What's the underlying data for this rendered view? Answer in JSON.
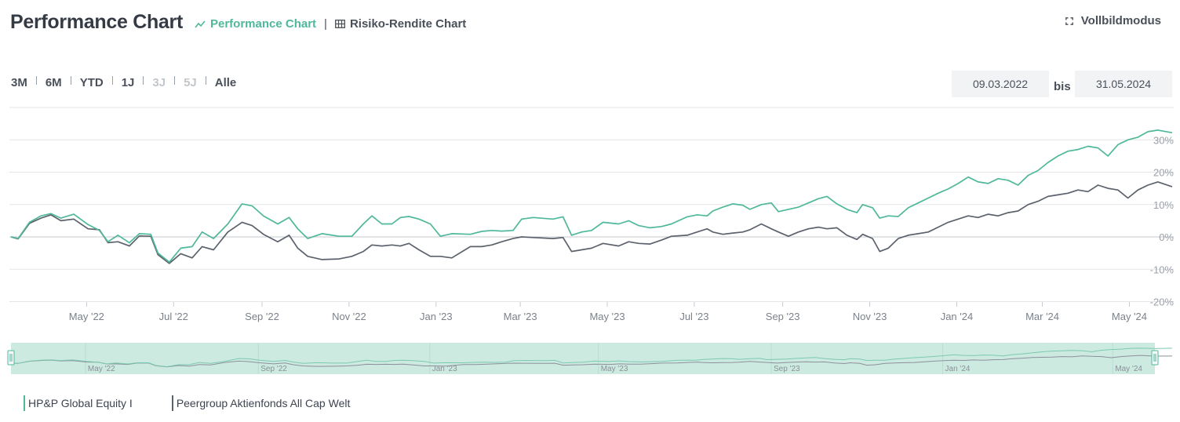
{
  "header": {
    "title": "Performance Chart",
    "view_active": "Performance Chart",
    "view_separator": "|",
    "view_other": "Risiko-Rendite Chart",
    "fullscreen": "Vollbildmodus"
  },
  "ranges": [
    {
      "label": "3M",
      "enabled": true
    },
    {
      "label": "6M",
      "enabled": true
    },
    {
      "label": "YTD",
      "enabled": true
    },
    {
      "label": "1J",
      "enabled": true
    },
    {
      "label": "3J",
      "enabled": false
    },
    {
      "label": "5J",
      "enabled": false
    },
    {
      "label": "Alle",
      "enabled": true
    }
  ],
  "date_from": "09.03.2022",
  "date_sep": "bis",
  "date_to": "31.05.2024",
  "colors": {
    "fund": "#4fb89a",
    "peer": "#5c626c",
    "grid": "#e3e5e8",
    "navigator": "#cdeae1"
  },
  "chart_data": {
    "type": "line",
    "title": "",
    "xlabel": "",
    "ylabel": "",
    "x_start": "2022-03-09",
    "x_end": "2024-05-31",
    "ylim": [
      -20,
      40
    ],
    "y_ticks": [
      "-20%",
      "-10%",
      "0%",
      "10%",
      "20%",
      "30%"
    ],
    "y_tick_values": [
      -20,
      -10,
      0,
      10,
      20,
      30
    ],
    "x_tick_labels": [
      "May '22",
      "Jul '22",
      "Sep '22",
      "Nov '22",
      "Jan '23",
      "Mar '23",
      "May '23",
      "Jul '23",
      "Sep '23",
      "Nov '23",
      "Jan '24",
      "Mar '24",
      "May '24"
    ],
    "x_tick_dates": [
      "2022-05-01",
      "2022-07-01",
      "2022-09-01",
      "2022-11-01",
      "2023-01-01",
      "2023-03-01",
      "2023-05-01",
      "2023-07-01",
      "2023-09-01",
      "2023-11-01",
      "2024-01-01",
      "2024-03-01",
      "2024-05-01"
    ],
    "grid": true,
    "legend_position": "bottom-left",
    "series": [
      {
        "name": "HP&P Global Equity I",
        "color": "#4fb89a",
        "points": [
          [
            "2022-03-09",
            0
          ],
          [
            "2022-03-14",
            -0.5
          ],
          [
            "2022-03-22",
            4.5
          ],
          [
            "2022-03-30",
            6.5
          ],
          [
            "2022-04-06",
            7.2
          ],
          [
            "2022-04-13",
            5.8
          ],
          [
            "2022-04-22",
            7.0
          ],
          [
            "2022-05-02",
            3.8
          ],
          [
            "2022-05-10",
            2.0
          ],
          [
            "2022-05-16",
            -1.5
          ],
          [
            "2022-05-23",
            0.5
          ],
          [
            "2022-05-31",
            -1.8
          ],
          [
            "2022-06-07",
            1.0
          ],
          [
            "2022-06-15",
            0.8
          ],
          [
            "2022-06-20",
            -5.0
          ],
          [
            "2022-06-28",
            -7.8
          ],
          [
            "2022-07-06",
            -3.5
          ],
          [
            "2022-07-14",
            -3.0
          ],
          [
            "2022-07-21",
            1.5
          ],
          [
            "2022-07-29",
            -0.5
          ],
          [
            "2022-08-08",
            4.0
          ],
          [
            "2022-08-18",
            10.2
          ],
          [
            "2022-08-25",
            9.6
          ],
          [
            "2022-09-02",
            6.5
          ],
          [
            "2022-09-12",
            4.0
          ],
          [
            "2022-09-20",
            6.0
          ],
          [
            "2022-09-26",
            2.5
          ],
          [
            "2022-10-03",
            -0.5
          ],
          [
            "2022-10-13",
            1.0
          ],
          [
            "2022-10-25",
            0.2
          ],
          [
            "2022-11-03",
            0.2
          ],
          [
            "2022-11-11",
            4.0
          ],
          [
            "2022-11-17",
            6.5
          ],
          [
            "2022-11-24",
            4.0
          ],
          [
            "2022-12-01",
            4.0
          ],
          [
            "2022-12-07",
            6.0
          ],
          [
            "2022-12-13",
            6.3
          ],
          [
            "2022-12-20",
            5.5
          ],
          [
            "2022-12-28",
            4.0
          ],
          [
            "2023-01-04",
            0.2
          ],
          [
            "2023-01-12",
            1.0
          ],
          [
            "2023-01-25",
            0.8
          ],
          [
            "2023-02-02",
            1.7
          ],
          [
            "2023-02-09",
            2.0
          ],
          [
            "2023-02-16",
            1.8
          ],
          [
            "2023-02-24",
            2.0
          ],
          [
            "2023-03-02",
            5.5
          ],
          [
            "2023-03-10",
            6.0
          ],
          [
            "2023-03-24",
            5.5
          ],
          [
            "2023-03-31",
            6.2
          ],
          [
            "2023-04-06",
            0.5
          ],
          [
            "2023-04-13",
            1.5
          ],
          [
            "2023-04-20",
            2.0
          ],
          [
            "2023-04-28",
            4.5
          ],
          [
            "2023-05-09",
            4.0
          ],
          [
            "2023-05-16",
            5.0
          ],
          [
            "2023-05-23",
            3.5
          ],
          [
            "2023-05-31",
            2.8
          ],
          [
            "2023-06-08",
            3.2
          ],
          [
            "2023-06-15",
            4.0
          ],
          [
            "2023-06-26",
            6.2
          ],
          [
            "2023-07-03",
            6.8
          ],
          [
            "2023-07-10",
            6.5
          ],
          [
            "2023-07-14",
            8.0
          ],
          [
            "2023-07-21",
            9.2
          ],
          [
            "2023-07-28",
            10.2
          ],
          [
            "2023-08-04",
            9.8
          ],
          [
            "2023-08-09",
            8.5
          ],
          [
            "2023-08-17",
            10.0
          ],
          [
            "2023-08-24",
            10.5
          ],
          [
            "2023-08-29",
            7.8
          ],
          [
            "2023-09-05",
            8.5
          ],
          [
            "2023-09-12",
            9.2
          ],
          [
            "2023-09-19",
            10.5
          ],
          [
            "2023-09-26",
            11.8
          ],
          [
            "2023-10-02",
            12.5
          ],
          [
            "2023-10-09",
            10.2
          ],
          [
            "2023-10-16",
            8.5
          ],
          [
            "2023-10-23",
            7.5
          ],
          [
            "2023-10-27",
            10.0
          ],
          [
            "2023-11-03",
            9.0
          ],
          [
            "2023-11-08",
            5.8
          ],
          [
            "2023-11-14",
            6.5
          ],
          [
            "2023-11-21",
            6.3
          ],
          [
            "2023-11-28",
            9.0
          ],
          [
            "2023-12-05",
            10.5
          ],
          [
            "2023-12-12",
            12.0
          ],
          [
            "2023-12-19",
            13.5
          ],
          [
            "2023-12-26",
            14.8
          ],
          [
            "2024-01-02",
            16.5
          ],
          [
            "2024-01-09",
            18.5
          ],
          [
            "2024-01-16",
            17.0
          ],
          [
            "2024-01-23",
            16.5
          ],
          [
            "2024-01-30",
            18.0
          ],
          [
            "2024-02-06",
            17.5
          ],
          [
            "2024-02-13",
            16.0
          ],
          [
            "2024-02-20",
            19.0
          ],
          [
            "2024-02-27",
            20.5
          ],
          [
            "2024-03-05",
            23.0
          ],
          [
            "2024-03-12",
            25.0
          ],
          [
            "2024-03-19",
            26.5
          ],
          [
            "2024-03-26",
            27.0
          ],
          [
            "2024-04-02",
            28.0
          ],
          [
            "2024-04-09",
            27.5
          ],
          [
            "2024-04-16",
            25.0
          ],
          [
            "2024-04-23",
            28.5
          ],
          [
            "2024-04-30",
            30.0
          ],
          [
            "2024-05-07",
            30.8
          ],
          [
            "2024-05-14",
            32.5
          ],
          [
            "2024-05-21",
            33.0
          ],
          [
            "2024-05-31",
            32.2
          ]
        ]
      },
      {
        "name": "Peergroup Aktienfonds All Cap Welt",
        "color": "#5c626c",
        "points": [
          [
            "2022-03-09",
            0
          ],
          [
            "2022-03-14",
            -0.6
          ],
          [
            "2022-03-22",
            4.2
          ],
          [
            "2022-03-30",
            5.8
          ],
          [
            "2022-04-06",
            6.8
          ],
          [
            "2022-04-13",
            5.0
          ],
          [
            "2022-04-22",
            5.5
          ],
          [
            "2022-05-02",
            2.5
          ],
          [
            "2022-05-10",
            2.2
          ],
          [
            "2022-05-16",
            -1.8
          ],
          [
            "2022-05-23",
            -1.5
          ],
          [
            "2022-05-31",
            -2.8
          ],
          [
            "2022-06-07",
            0.3
          ],
          [
            "2022-06-15",
            0.2
          ],
          [
            "2022-06-20",
            -5.5
          ],
          [
            "2022-06-28",
            -8.2
          ],
          [
            "2022-07-06",
            -5.2
          ],
          [
            "2022-07-14",
            -6.5
          ],
          [
            "2022-07-21",
            -3.0
          ],
          [
            "2022-07-29",
            -4.0
          ],
          [
            "2022-08-08",
            1.5
          ],
          [
            "2022-08-18",
            4.5
          ],
          [
            "2022-08-25",
            3.5
          ],
          [
            "2022-09-02",
            0.8
          ],
          [
            "2022-09-12",
            -1.5
          ],
          [
            "2022-09-20",
            0.5
          ],
          [
            "2022-09-26",
            -3.5
          ],
          [
            "2022-10-03",
            -6.0
          ],
          [
            "2022-10-13",
            -7.0
          ],
          [
            "2022-10-25",
            -6.8
          ],
          [
            "2022-11-03",
            -6.0
          ],
          [
            "2022-11-11",
            -4.5
          ],
          [
            "2022-11-17",
            -2.5
          ],
          [
            "2022-11-24",
            -2.8
          ],
          [
            "2022-12-01",
            -2.5
          ],
          [
            "2022-12-07",
            -2.8
          ],
          [
            "2022-12-13",
            -2.0
          ],
          [
            "2022-12-20",
            -4.0
          ],
          [
            "2022-12-28",
            -6.0
          ],
          [
            "2023-01-04",
            -6.0
          ],
          [
            "2023-01-12",
            -6.5
          ],
          [
            "2023-01-25",
            -3.0
          ],
          [
            "2023-02-02",
            -3.0
          ],
          [
            "2023-02-09",
            -2.5
          ],
          [
            "2023-02-16",
            -1.5
          ],
          [
            "2023-02-24",
            -0.5
          ],
          [
            "2023-03-02",
            0
          ],
          [
            "2023-03-10",
            -0.2
          ],
          [
            "2023-03-24",
            -0.5
          ],
          [
            "2023-03-31",
            -0.2
          ],
          [
            "2023-04-06",
            -4.5
          ],
          [
            "2023-04-13",
            -4.0
          ],
          [
            "2023-04-20",
            -3.5
          ],
          [
            "2023-04-28",
            -2.0
          ],
          [
            "2023-05-09",
            -2.8
          ],
          [
            "2023-05-16",
            -1.5
          ],
          [
            "2023-05-23",
            -2.0
          ],
          [
            "2023-05-31",
            -2.2
          ],
          [
            "2023-06-08",
            -1.0
          ],
          [
            "2023-06-15",
            0.2
          ],
          [
            "2023-06-26",
            0.5
          ],
          [
            "2023-07-03",
            1.5
          ],
          [
            "2023-07-10",
            2.5
          ],
          [
            "2023-07-14",
            1.5
          ],
          [
            "2023-07-21",
            0.8
          ],
          [
            "2023-07-28",
            1.2
          ],
          [
            "2023-08-04",
            1.5
          ],
          [
            "2023-08-09",
            2.2
          ],
          [
            "2023-08-17",
            4.0
          ],
          [
            "2023-08-24",
            2.5
          ],
          [
            "2023-08-29",
            1.5
          ],
          [
            "2023-09-05",
            0.2
          ],
          [
            "2023-09-12",
            1.5
          ],
          [
            "2023-09-19",
            2.5
          ],
          [
            "2023-09-26",
            3.0
          ],
          [
            "2023-10-02",
            2.5
          ],
          [
            "2023-10-09",
            2.8
          ],
          [
            "2023-10-16",
            0.5
          ],
          [
            "2023-10-23",
            -0.8
          ],
          [
            "2023-10-27",
            0.8
          ],
          [
            "2023-11-03",
            -0.5
          ],
          [
            "2023-11-08",
            -4.5
          ],
          [
            "2023-11-14",
            -3.5
          ],
          [
            "2023-11-21",
            -0.5
          ],
          [
            "2023-11-28",
            0.5
          ],
          [
            "2023-12-05",
            1.0
          ],
          [
            "2023-12-12",
            1.5
          ],
          [
            "2023-12-19",
            3.0
          ],
          [
            "2023-12-26",
            4.5
          ],
          [
            "2024-01-02",
            5.5
          ],
          [
            "2024-01-09",
            6.5
          ],
          [
            "2024-01-16",
            6.0
          ],
          [
            "2024-01-23",
            7.0
          ],
          [
            "2024-01-30",
            6.5
          ],
          [
            "2024-02-06",
            7.5
          ],
          [
            "2024-02-13",
            8.0
          ],
          [
            "2024-02-20",
            10.0
          ],
          [
            "2024-02-27",
            11.0
          ],
          [
            "2024-03-05",
            12.5
          ],
          [
            "2024-03-12",
            13.0
          ],
          [
            "2024-03-19",
            13.5
          ],
          [
            "2024-03-26",
            14.5
          ],
          [
            "2024-04-02",
            14.0
          ],
          [
            "2024-04-09",
            16.0
          ],
          [
            "2024-04-16",
            15.0
          ],
          [
            "2024-04-23",
            14.5
          ],
          [
            "2024-04-30",
            12.0
          ],
          [
            "2024-05-07",
            14.5
          ],
          [
            "2024-05-14",
            16.0
          ],
          [
            "2024-05-21",
            17.0
          ],
          [
            "2024-05-31",
            15.5
          ]
        ]
      }
    ],
    "navigator": {
      "tick_labels": [
        "May '22",
        "Sep '22",
        "Jan '23",
        "May '23",
        "Sep '23",
        "Jan '24",
        "May '24"
      ],
      "tick_dates": [
        "2022-05-01",
        "2022-09-01",
        "2023-01-01",
        "2023-05-01",
        "2023-09-01",
        "2024-01-01",
        "2024-05-01"
      ]
    }
  },
  "legend": [
    {
      "label": "HP&P Global Equity I",
      "color": "#4fb89a"
    },
    {
      "label": "Peergroup Aktienfonds All Cap Welt",
      "color": "#5c626c"
    }
  ]
}
